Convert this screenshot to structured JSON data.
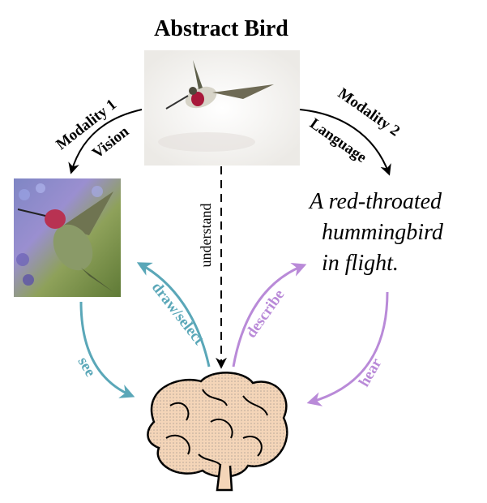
{
  "title": "Abstract Bird",
  "modality1": {
    "name": "Modality 1",
    "type": "Vision"
  },
  "modality2": {
    "name": "Modality 2",
    "type": "Language"
  },
  "caption": {
    "line1": "A  red-throated",
    "line2": "hummingbird",
    "line3": "in flight."
  },
  "arrows": {
    "understand": "understand",
    "draw_select": "draw/select",
    "see": "see",
    "describe": "describe",
    "hear": "hear"
  },
  "icons": {
    "abstract_bird": "hummingbird-icon",
    "photo": "hummingbird-photo",
    "brain": "brain-icon"
  },
  "colors": {
    "vision": "#5aa7b8",
    "language": "#b98ad8",
    "black": "#000000"
  }
}
